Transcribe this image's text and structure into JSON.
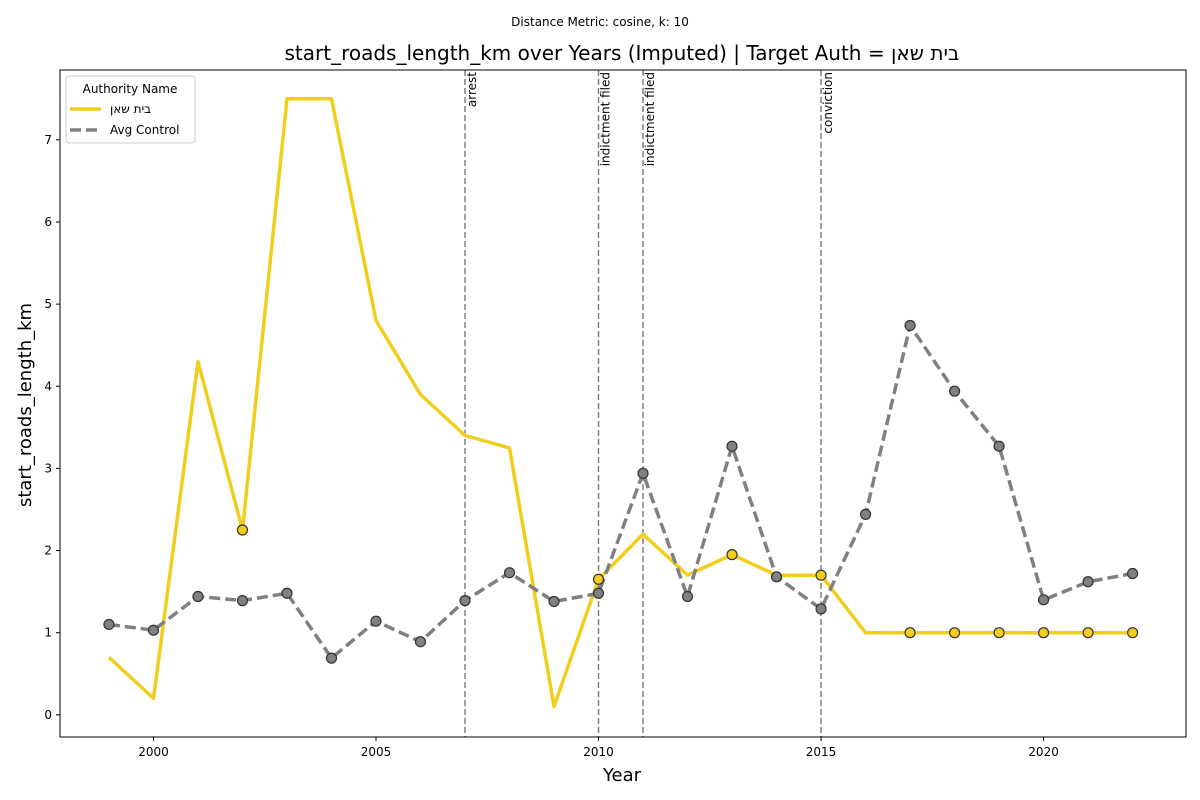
{
  "suptitle": "Distance Metric: cosine, k: 10",
  "chart_data": {
    "type": "line",
    "title": "start_roads_length_km over Years (Imputed) | Target Auth = בית שאן",
    "xlabel": "Year",
    "ylabel": "start_roads_length_km",
    "xlim": [
      1997.9,
      2023.2
    ],
    "ylim": [
      -0.27,
      7.85
    ],
    "xticks": [
      2000,
      2005,
      2010,
      2015,
      2020
    ],
    "yticks": [
      0,
      1,
      2,
      3,
      4,
      5,
      6,
      7
    ],
    "grid": false,
    "legend": {
      "title": "Authority Name",
      "position": "top-left"
    },
    "series": [
      {
        "name": "בית שאן",
        "color": "#f2ce1c",
        "style": "solid",
        "x": [
          1999,
          2000,
          2001,
          2002,
          2003,
          2004,
          2005,
          2006,
          2007,
          2008,
          2009,
          2010,
          2011,
          2012,
          2013,
          2014,
          2015,
          2016,
          2017,
          2018,
          2019,
          2020,
          2021,
          2022
        ],
        "y": [
          0.7,
          0.2,
          4.3,
          2.25,
          7.5,
          7.5,
          4.8,
          3.9,
          3.4,
          3.25,
          0.1,
          1.65,
          2.2,
          1.7,
          1.95,
          1.7,
          1.7,
          1.0,
          1.0,
          1.0,
          1.0,
          1.0,
          1.0,
          1.0
        ],
        "markers_at": [
          2002,
          2010,
          2013,
          2015,
          2017,
          2018,
          2019,
          2020,
          2021,
          2022
        ]
      },
      {
        "name": "Avg Control",
        "color": "#808080",
        "style": "dashed",
        "x": [
          1999,
          2000,
          2001,
          2002,
          2003,
          2004,
          2005,
          2006,
          2007,
          2008,
          2009,
          2010,
          2011,
          2012,
          2013,
          2014,
          2015,
          2016,
          2017,
          2018,
          2019,
          2020,
          2021,
          2022
        ],
        "y": [
          1.1,
          1.03,
          1.44,
          1.39,
          1.48,
          0.69,
          1.14,
          0.89,
          1.39,
          1.73,
          1.38,
          1.48,
          2.94,
          1.44,
          3.27,
          1.68,
          1.29,
          2.44,
          4.74,
          3.94,
          3.27,
          1.4,
          1.62,
          1.72
        ],
        "markers_at": "all"
      }
    ],
    "events": [
      {
        "x": 2007,
        "label": "arrest"
      },
      {
        "x": 2010,
        "label": "indictment filed"
      },
      {
        "x": 2011,
        "label": "indictment filed"
      },
      {
        "x": 2015,
        "label": "conviction"
      }
    ]
  }
}
